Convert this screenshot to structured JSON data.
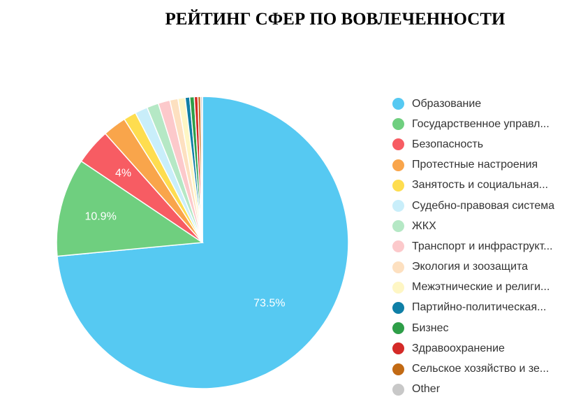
{
  "chart_data": {
    "type": "pie",
    "title": "РЕЙТИНГ СФЕР ПО ВОВЛЕЧЕННОСТИ",
    "slices": [
      {
        "name": "Образование",
        "value": 73.5,
        "color": "#56c9f2",
        "label": "73.5%"
      },
      {
        "name": "Государственное управл...",
        "value": 10.9,
        "color": "#6fcf7f",
        "label": "10.9%"
      },
      {
        "name": "Безопасность",
        "value": 4.0,
        "color": "#f75c63",
        "label": "4%"
      },
      {
        "name": "Протестные настроения",
        "value": 2.6,
        "color": "#f9a54b",
        "label": ""
      },
      {
        "name": "Занятость и социальная...",
        "value": 1.4,
        "color": "#fedd4f",
        "label": ""
      },
      {
        "name": "Судебно-правовая система",
        "value": 1.4,
        "color": "#c9eefa",
        "label": ""
      },
      {
        "name": "ЖКХ",
        "value": 1.3,
        "color": "#b5e8c5",
        "label": ""
      },
      {
        "name": "Транспорт и инфраструкт...",
        "value": 1.3,
        "color": "#fcc9cb",
        "label": ""
      },
      {
        "name": "Экология и зоозащита",
        "value": 0.9,
        "color": "#fde0c0",
        "label": ""
      },
      {
        "name": "Межэтнические и религи...",
        "value": 0.8,
        "color": "#fef6c4",
        "label": ""
      },
      {
        "name": "Партийно-политическая...",
        "value": 0.5,
        "color": "#0f7fa6",
        "label": ""
      },
      {
        "name": "Бизнес",
        "value": 0.5,
        "color": "#2e9e48",
        "label": ""
      },
      {
        "name": "Здравоохранение",
        "value": 0.4,
        "color": "#d42a27",
        "label": ""
      },
      {
        "name": "Сельское хозяйство и зе...",
        "value": 0.3,
        "color": "#c26a14",
        "label": ""
      },
      {
        "name": "Other",
        "value": 0.2,
        "color": "#c8c8c8",
        "label": ""
      }
    ],
    "legend_position": "right"
  }
}
